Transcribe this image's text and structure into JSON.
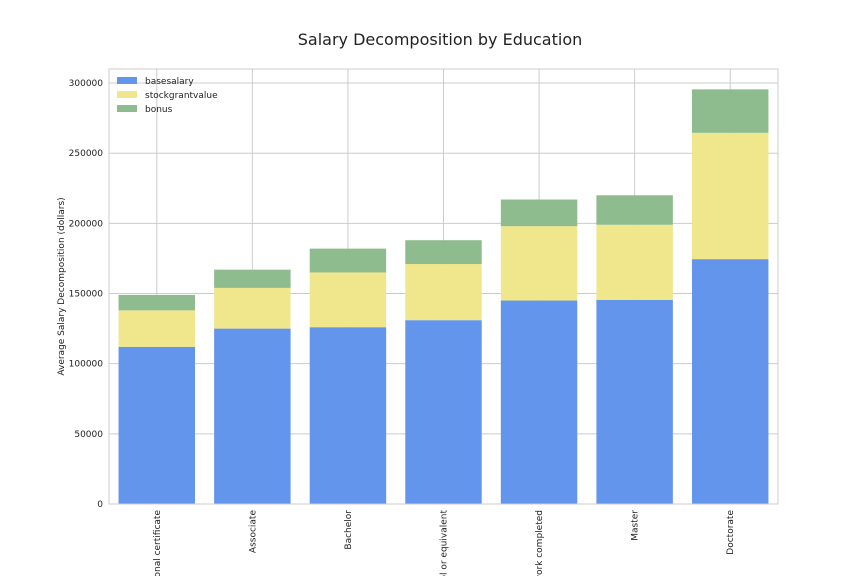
{
  "chart_data": {
    "type": "bar",
    "stacked": true,
    "title": "Salary Decomposition by Education",
    "xlabel": "",
    "ylabel": "Average Salary Decomposition (dollars)",
    "ylim": [
      0,
      310000
    ],
    "yticks": [
      0,
      50000,
      100000,
      150000,
      200000,
      250000,
      300000
    ],
    "ytick_labels": [
      "0",
      "50000",
      "100000",
      "150000",
      "200000",
      "250000",
      "300000"
    ],
    "categories": [
      "ional certificate",
      "Associate",
      "Bachelor",
      "ol or equivalent",
      "work completed",
      "Master",
      "Doctorate"
    ],
    "series": [
      {
        "name": "basesalary",
        "color": "#6495ED",
        "values": [
          112000,
          125000,
          126000,
          131000,
          145000,
          145500,
          174500
        ]
      },
      {
        "name": "stockgrantvalue",
        "color": "#F0E68C",
        "values": [
          26000,
          29000,
          39000,
          40000,
          53000,
          53500,
          90000
        ]
      },
      {
        "name": "bonus",
        "color": "#8FBC8F",
        "values": [
          11000,
          13000,
          17000,
          17000,
          19000,
          21000,
          31000
        ]
      }
    ],
    "grid": true,
    "legend_position": "top-left"
  }
}
